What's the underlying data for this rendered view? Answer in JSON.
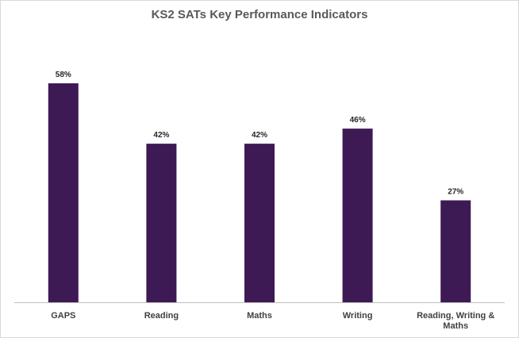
{
  "chart_data": {
    "type": "bar",
    "title": "KS2 SATs Key Performance Indicators",
    "categories": [
      "GAPS",
      "Reading",
      "Maths",
      "Writing",
      "Reading, Writing & Maths"
    ],
    "category_lines": [
      [
        "GAPS"
      ],
      [
        "Reading"
      ],
      [
        "Maths"
      ],
      [
        "Writing"
      ],
      [
        "Reading, Writing &",
        "Maths"
      ]
    ],
    "values": [
      58,
      42,
      42,
      46,
      27
    ],
    "value_labels": [
      "58%",
      "42%",
      "42%",
      "46%",
      "27%"
    ],
    "ylim": [
      0,
      58
    ],
    "grid": false,
    "legend": "none",
    "bar_color": "#3e1a55"
  }
}
